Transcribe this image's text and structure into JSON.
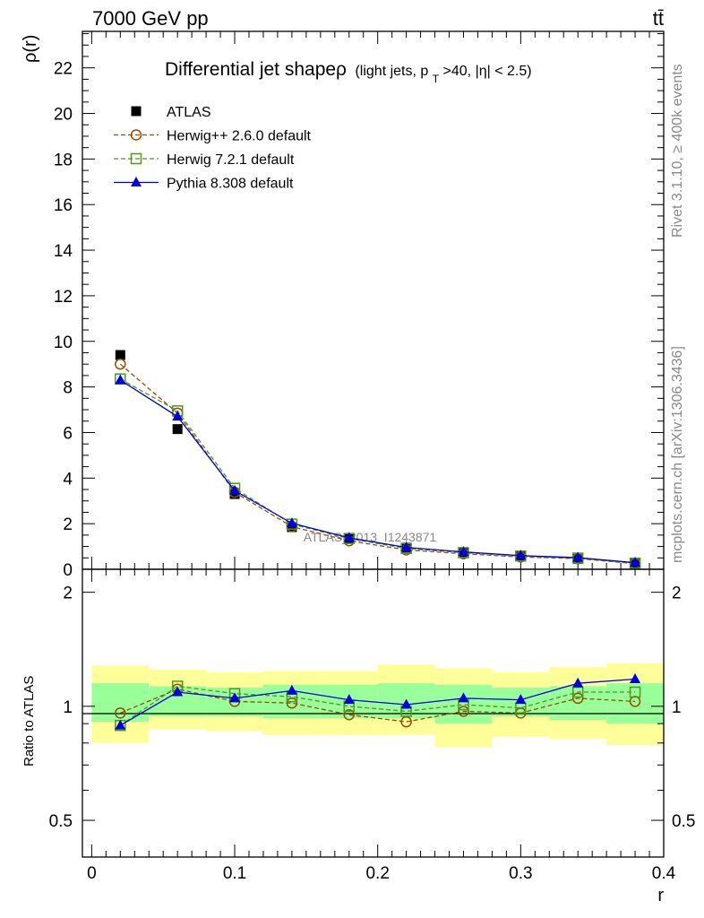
{
  "header": {
    "left": "7000 GeV pp",
    "right": "tt̄"
  },
  "side_text": {
    "rivet": "Rivet 3.1.10, ≥ 400k events",
    "mcplots": "mcplots.cern.ch [arXiv:1306.3436]"
  },
  "chart_data": [
    {
      "type": "scatter",
      "panel": "main",
      "title": "Differential jet shapeρ",
      "title_suffix": "(light jets, p",
      "title_sub": "T",
      "title_tail": ">40, |η| < 2.5)",
      "ylabel": "ρ(r)",
      "xlabel": "r",
      "xlim": [
        -0.0065,
        0.4
      ],
      "ylim": [
        0,
        23.6
      ],
      "yticks": [
        0,
        2,
        4,
        6,
        8,
        10,
        12,
        14,
        16,
        18,
        20,
        22
      ],
      "ytick_labels": [
        "0",
        "2",
        "4",
        "6",
        "8",
        "10",
        "12",
        "14",
        "16",
        "18",
        "20",
        "22"
      ],
      "watermark": "ATLAS_2013_I1243871",
      "legend_position": "top-left",
      "x": [
        0.02,
        0.06,
        0.1,
        0.14,
        0.18,
        0.22,
        0.26,
        0.3,
        0.34,
        0.38
      ],
      "series": [
        {
          "name": "ATLAS",
          "color": "#000000",
          "marker": "filled-square",
          "line": "none",
          "values": [
            9.4,
            6.15,
            3.3,
            1.85,
            1.35,
            0.95,
            0.72,
            0.58,
            0.45,
            0.25
          ]
        },
        {
          "name": "Herwig++ 2.6.0 default",
          "color": "#994c00",
          "marker": "open-circle",
          "line": "dashed",
          "values": [
            9.0,
            6.85,
            3.38,
            1.87,
            1.25,
            0.85,
            0.68,
            0.54,
            0.47,
            0.25
          ]
        },
        {
          "name": "Herwig 7.2.1 default",
          "color": "#4a9a1e",
          "marker": "open-square",
          "line": "dashed",
          "values": [
            8.35,
            6.95,
            3.55,
            1.98,
            1.35,
            0.91,
            0.73,
            0.58,
            0.49,
            0.27
          ]
        },
        {
          "name": "Pythia 8.308 default",
          "color": "#0000dd",
          "marker": "filled-triangle",
          "line": "solid",
          "values": [
            8.3,
            6.7,
            3.45,
            2.02,
            1.38,
            0.96,
            0.76,
            0.6,
            0.51,
            0.29
          ]
        }
      ]
    },
    {
      "type": "scatter",
      "panel": "ratio",
      "ylabel": "Ratio to ATLAS",
      "xlabel": "r",
      "xlim": [
        -0.0065,
        0.4
      ],
      "ylim": [
        0.4,
        2.3
      ],
      "log_y": true,
      "yticks": [
        0.5,
        1,
        2
      ],
      "ytick_labels": [
        "0.5",
        "1",
        "2"
      ],
      "xticks": [
        0,
        0.1,
        0.2,
        0.3,
        0.4
      ],
      "xtick_labels": [
        "0",
        "0.1",
        "0.2",
        "0.3",
        "0.4"
      ],
      "bins": [
        [
          0.0,
          0.04
        ],
        [
          0.04,
          0.08
        ],
        [
          0.08,
          0.12
        ],
        [
          0.12,
          0.16
        ],
        [
          0.16,
          0.2
        ],
        [
          0.2,
          0.24
        ],
        [
          0.24,
          0.28
        ],
        [
          0.28,
          0.32
        ],
        [
          0.32,
          0.36
        ],
        [
          0.36,
          0.4
        ]
      ],
      "band_stat": [
        [
          0.91,
          1.15
        ],
        [
          0.94,
          1.13
        ],
        [
          0.94,
          1.12
        ],
        [
          0.93,
          1.14
        ],
        [
          0.93,
          1.14
        ],
        [
          0.93,
          1.15
        ],
        [
          0.9,
          1.14
        ],
        [
          0.94,
          1.12
        ],
        [
          0.92,
          1.13
        ],
        [
          0.9,
          1.15
        ]
      ],
      "band_total": [
        [
          0.8,
          1.28
        ],
        [
          0.87,
          1.25
        ],
        [
          0.86,
          1.23
        ],
        [
          0.84,
          1.24
        ],
        [
          0.84,
          1.24
        ],
        [
          0.84,
          1.29
        ],
        [
          0.78,
          1.26
        ],
        [
          0.83,
          1.23
        ],
        [
          0.82,
          1.27
        ],
        [
          0.79,
          1.3
        ]
      ],
      "band_colors": {
        "stat": "#99ff99",
        "total": "#ffff99"
      },
      "x": [
        0.02,
        0.06,
        0.1,
        0.14,
        0.18,
        0.22,
        0.26,
        0.3,
        0.34,
        0.38
      ],
      "series": [
        {
          "name": "Herwig++ 2.6.0 default",
          "color": "#994c00",
          "marker": "open-circle",
          "line": "dashed",
          "values": [
            0.96,
            1.11,
            1.03,
            1.02,
            0.95,
            0.91,
            0.97,
            0.96,
            1.05,
            1.03
          ]
        },
        {
          "name": "Herwig 7.2.1 default",
          "color": "#4a9a1e",
          "marker": "open-square",
          "line": "dashed",
          "values": [
            0.89,
            1.13,
            1.08,
            1.06,
            1.0,
            0.97,
            1.01,
            0.99,
            1.09,
            1.09
          ]
        },
        {
          "name": "Pythia 8.308 default",
          "color": "#0000dd",
          "marker": "filled-triangle",
          "line": "solid",
          "values": [
            0.89,
            1.09,
            1.05,
            1.1,
            1.04,
            1.01,
            1.05,
            1.04,
            1.15,
            1.18
          ]
        }
      ]
    }
  ]
}
